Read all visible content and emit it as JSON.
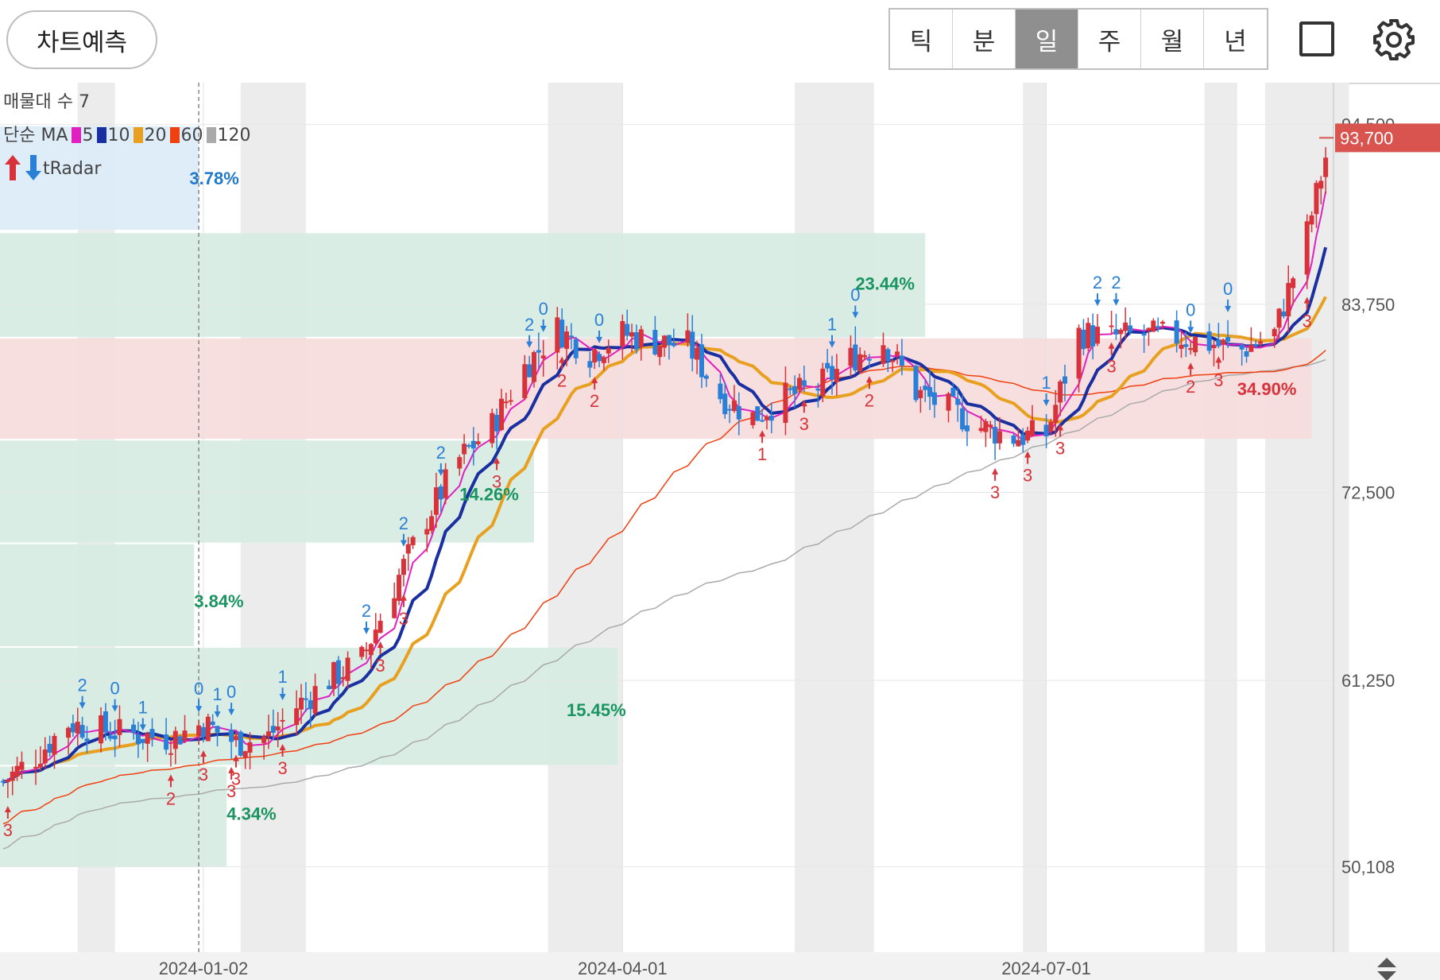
{
  "header": {
    "predict_label": "차트예측",
    "periods": [
      "틱",
      "분",
      "일",
      "주",
      "월",
      "년"
    ],
    "active_period": "일"
  },
  "indicators": {
    "volume_profile": "매물대 수 7",
    "ma_prefix": "단순 MA",
    "ma_items": [
      {
        "label": "5",
        "color": "#e020c0"
      },
      {
        "label": "10",
        "color": "#1a2fa0"
      },
      {
        "label": "20",
        "color": "#e8a020"
      },
      {
        "label": "60",
        "color": "#f04010"
      },
      {
        "label": "120",
        "color": "#aaaaaa"
      }
    ],
    "radar_label": "tRadar"
  },
  "colors": {
    "up": "#d8333a",
    "down": "#2a7fd6",
    "ma5": "#e020c0",
    "ma10": "#1a2fa0",
    "ma20": "#e8a020",
    "ma60": "#f04010",
    "ma120": "#aaaaaa",
    "zone_green": "#d6ebe3",
    "zone_red": "#f7dcdc",
    "zone_blue": "#dcebf8",
    "price_tag": "#d9534f"
  },
  "chart_data": {
    "type": "candlestick",
    "y_ticks": [
      "94,500",
      "83,750",
      "72,500",
      "61,250",
      "50,108"
    ],
    "y_tick_values": [
      94500,
      83750,
      72500,
      61250,
      50108
    ],
    "x_ticks": [
      "2024-01-02",
      "2024-04-01",
      "2024-07-01"
    ],
    "ylim": [
      45000,
      97000
    ],
    "current_price": "93,700",
    "current_value": 93700,
    "zones": [
      {
        "kind": "blue",
        "x0": "2023-10-20",
        "x1": "2024-01-01",
        "y0": 88200,
        "y1": 94400
      },
      {
        "kind": "green",
        "x0": "2023-10-20",
        "x1": "2024-06-05",
        "y0": 81800,
        "y1": 88000
      },
      {
        "kind": "red",
        "x0": "2023-10-20",
        "x1": "2024-08-27",
        "y0": 75700,
        "y1": 81700
      },
      {
        "kind": "green",
        "x0": "2023-10-20",
        "x1": "2024-03-13",
        "y0": 69500,
        "y1": 75600
      },
      {
        "kind": "green",
        "x0": "2023-10-20",
        "x1": "2023-12-31",
        "y0": 63300,
        "y1": 69400
      },
      {
        "kind": "green",
        "x0": "2023-10-20",
        "x1": "2024-03-31",
        "y0": 56200,
        "y1": 63200
      },
      {
        "kind": "green",
        "x0": "2023-10-20",
        "x1": "2024-01-07",
        "y0": 50100,
        "y1": 56100
      }
    ],
    "zone_labels": [
      {
        "text": "3.78%",
        "date": "2023-12-30",
        "y": 91300,
        "color": "#1f78c8"
      },
      {
        "text": "23.44%",
        "date": "2024-05-21",
        "y": 85000,
        "color": "#1a9460"
      },
      {
        "text": "34.90%",
        "date": "2024-08-11",
        "y": 78700,
        "color": "#d8333a"
      },
      {
        "text": "14.26%",
        "date": "2024-02-26",
        "y": 72400,
        "color": "#1a9460"
      },
      {
        "text": "3.84%",
        "date": "2023-12-31",
        "y": 66000,
        "color": "#1a9460"
      },
      {
        "text": "15.45%",
        "date": "2024-03-20",
        "y": 59500,
        "color": "#1a9460"
      },
      {
        "text": "4.34%",
        "date": "2024-01-07",
        "y": 53300,
        "color": "#1a9460"
      }
    ],
    "shaded_columns": [
      [
        "2023-12-06",
        "2023-12-14"
      ],
      [
        "2024-01-10",
        "2024-01-24"
      ],
      [
        "2024-03-16",
        "2024-04-01"
      ],
      [
        "2024-05-08",
        "2024-05-25"
      ],
      [
        "2024-06-26",
        "2024-07-01"
      ],
      [
        "2024-08-04",
        "2024-08-11"
      ],
      [
        "2024-08-17",
        "2024-09-04"
      ]
    ],
    "signals": [
      {
        "date": "2023-11-21",
        "dir": "up",
        "label": "3"
      },
      {
        "date": "2023-12-07",
        "dir": "down",
        "label": "2"
      },
      {
        "date": "2023-12-14",
        "dir": "down",
        "label": "0"
      },
      {
        "date": "2023-12-20",
        "dir": "down",
        "label": "1"
      },
      {
        "date": "2023-12-26",
        "dir": "up",
        "label": "2"
      },
      {
        "date": "2024-01-01",
        "dir": "down",
        "label": "0"
      },
      {
        "date": "2024-01-02",
        "dir": "up",
        "label": "3"
      },
      {
        "date": "2024-01-05",
        "dir": "down",
        "label": "1"
      },
      {
        "date": "2024-01-08",
        "dir": "down",
        "label": "0"
      },
      {
        "date": "2024-01-08",
        "dir": "up",
        "label": "3"
      },
      {
        "date": "2024-01-09",
        "dir": "up",
        "label": "3"
      },
      {
        "date": "2024-01-19",
        "dir": "down",
        "label": "1"
      },
      {
        "date": "2024-01-19",
        "dir": "up",
        "label": "3"
      },
      {
        "date": "2024-02-06",
        "dir": "down",
        "label": "2"
      },
      {
        "date": "2024-02-09",
        "dir": "up",
        "label": "3"
      },
      {
        "date": "2024-02-14",
        "dir": "down",
        "label": "2"
      },
      {
        "date": "2024-02-14",
        "dir": "up",
        "label": "3"
      },
      {
        "date": "2024-02-22",
        "dir": "down",
        "label": "2"
      },
      {
        "date": "2024-03-12",
        "dir": "down",
        "label": "2"
      },
      {
        "date": "2024-03-05",
        "dir": "up",
        "label": "3"
      },
      {
        "date": "2024-03-17",
        "dir": "down",
        "label": "0"
      },
      {
        "date": "2024-03-19",
        "dir": "up",
        "label": "2"
      },
      {
        "date": "2024-03-27",
        "dir": "down",
        "label": "0"
      },
      {
        "date": "2024-03-26",
        "dir": "up",
        "label": "2"
      },
      {
        "date": "2024-05-16",
        "dir": "down",
        "label": "1"
      },
      {
        "date": "2024-05-10",
        "dir": "up",
        "label": "3"
      },
      {
        "date": "2024-05-01",
        "dir": "up",
        "label": "1"
      },
      {
        "date": "2024-05-21",
        "dir": "down",
        "label": "0"
      },
      {
        "date": "2024-05-24",
        "dir": "up",
        "label": "2"
      },
      {
        "date": "2024-06-20",
        "dir": "up",
        "label": "3"
      },
      {
        "date": "2024-06-27",
        "dir": "up",
        "label": "3"
      },
      {
        "date": "2024-07-01",
        "dir": "down",
        "label": "1"
      },
      {
        "date": "2024-07-04",
        "dir": "up",
        "label": "3"
      },
      {
        "date": "2024-07-13",
        "dir": "down",
        "label": "2"
      },
      {
        "date": "2024-07-16",
        "dir": "down",
        "label": "2"
      },
      {
        "date": "2024-07-15",
        "dir": "up",
        "label": "3"
      },
      {
        "date": "2024-08-01",
        "dir": "down",
        "label": "0"
      },
      {
        "date": "2024-08-01",
        "dir": "up",
        "label": "2"
      },
      {
        "date": "2024-08-07",
        "dir": "up",
        "label": "3"
      },
      {
        "date": "2024-08-11",
        "dir": "down",
        "label": "0"
      },
      {
        "date": "2024-08-26",
        "dir": "up",
        "label": "3"
      }
    ]
  }
}
